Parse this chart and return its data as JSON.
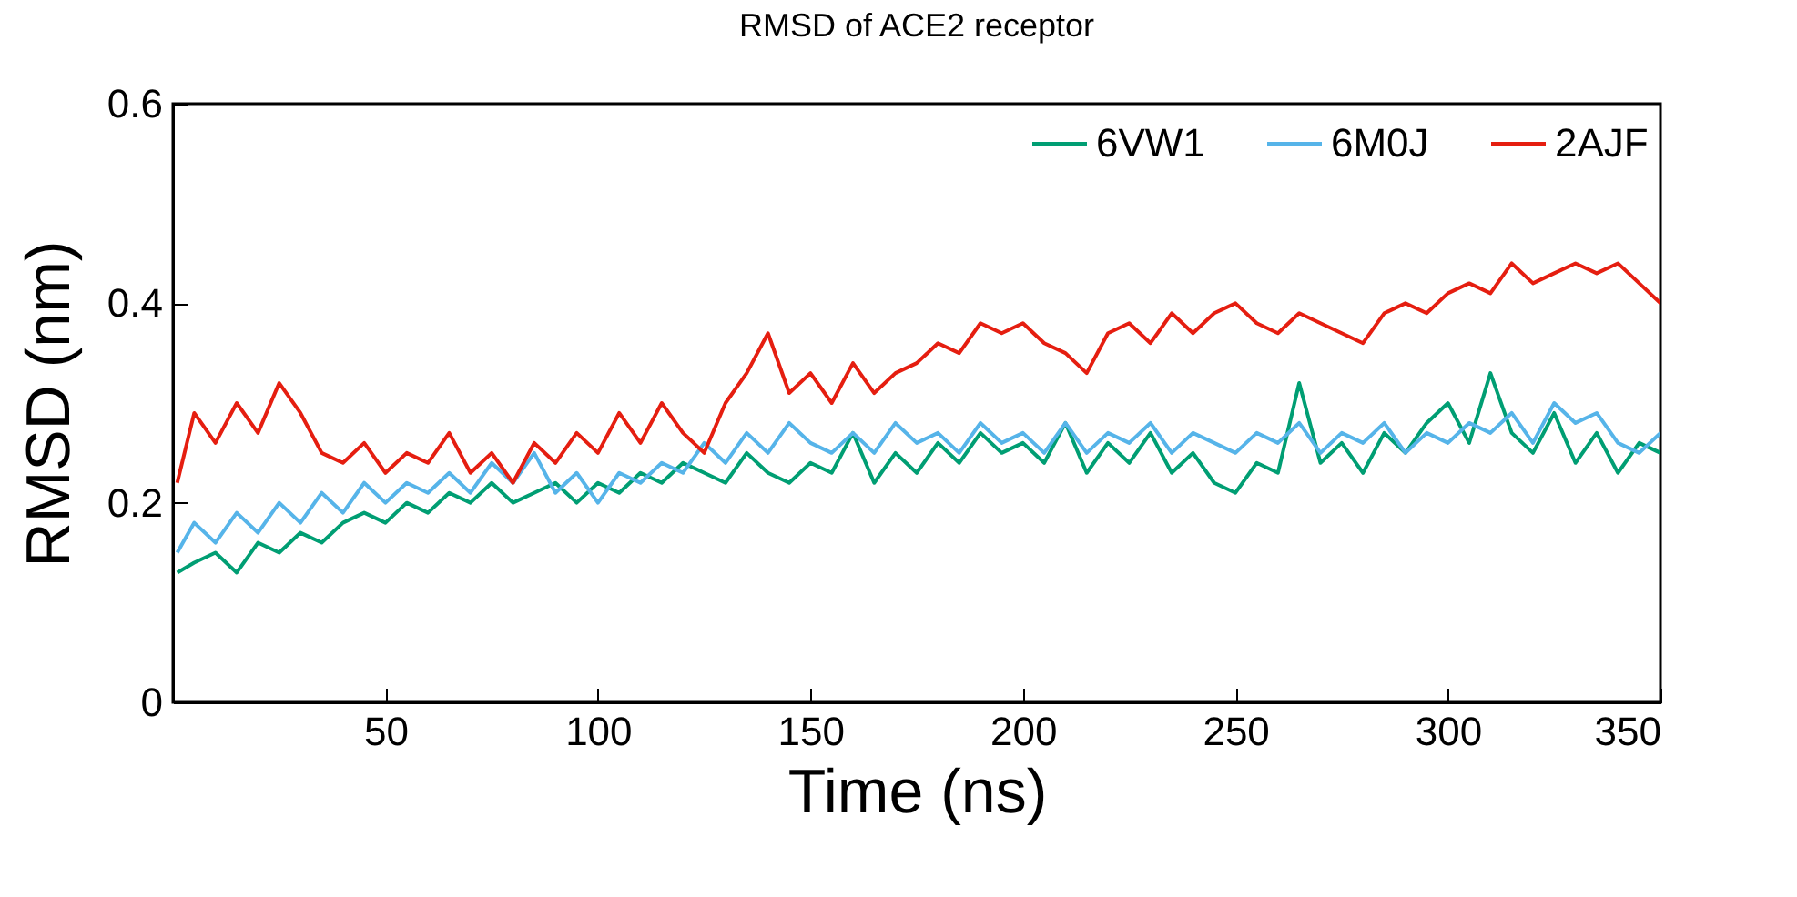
{
  "chart_data": {
    "type": "line",
    "title": "RMSD of ACE2 receptor",
    "xlabel": "Time (ns)",
    "ylabel": "RMSD (nm)",
    "x": [
      1,
      5,
      10,
      15,
      20,
      25,
      30,
      35,
      40,
      45,
      50,
      55,
      60,
      65,
      70,
      75,
      80,
      85,
      90,
      95,
      100,
      105,
      110,
      115,
      120,
      125,
      130,
      135,
      140,
      145,
      150,
      155,
      160,
      165,
      170,
      175,
      180,
      185,
      190,
      195,
      200,
      205,
      210,
      215,
      220,
      225,
      230,
      235,
      240,
      245,
      250,
      255,
      260,
      265,
      270,
      275,
      280,
      285,
      290,
      295,
      300,
      305,
      310,
      315,
      320,
      325,
      330,
      335,
      340,
      345,
      350
    ],
    "series": [
      {
        "name": "6VW1",
        "color": "#009e73",
        "values": [
          0.13,
          0.14,
          0.15,
          0.13,
          0.16,
          0.15,
          0.17,
          0.16,
          0.18,
          0.19,
          0.18,
          0.2,
          0.19,
          0.21,
          0.2,
          0.22,
          0.2,
          0.21,
          0.22,
          0.2,
          0.22,
          0.21,
          0.23,
          0.22,
          0.24,
          0.23,
          0.22,
          0.25,
          0.23,
          0.22,
          0.24,
          0.23,
          0.27,
          0.22,
          0.25,
          0.23,
          0.26,
          0.24,
          0.27,
          0.25,
          0.26,
          0.24,
          0.28,
          0.23,
          0.26,
          0.24,
          0.27,
          0.23,
          0.25,
          0.22,
          0.21,
          0.24,
          0.23,
          0.32,
          0.24,
          0.26,
          0.23,
          0.27,
          0.25,
          0.28,
          0.3,
          0.26,
          0.33,
          0.27,
          0.25,
          0.29,
          0.24,
          0.27,
          0.23,
          0.26,
          0.25
        ]
      },
      {
        "name": "6M0J",
        "color": "#56b4e9",
        "values": [
          0.15,
          0.18,
          0.16,
          0.19,
          0.17,
          0.2,
          0.18,
          0.21,
          0.19,
          0.22,
          0.2,
          0.22,
          0.21,
          0.23,
          0.21,
          0.24,
          0.22,
          0.25,
          0.21,
          0.23,
          0.2,
          0.23,
          0.22,
          0.24,
          0.23,
          0.26,
          0.24,
          0.27,
          0.25,
          0.28,
          0.26,
          0.25,
          0.27,
          0.25,
          0.28,
          0.26,
          0.27,
          0.25,
          0.28,
          0.26,
          0.27,
          0.25,
          0.28,
          0.25,
          0.27,
          0.26,
          0.28,
          0.25,
          0.27,
          0.26,
          0.25,
          0.27,
          0.26,
          0.28,
          0.25,
          0.27,
          0.26,
          0.28,
          0.25,
          0.27,
          0.26,
          0.28,
          0.27,
          0.29,
          0.26,
          0.3,
          0.28,
          0.29,
          0.26,
          0.25,
          0.27
        ]
      },
      {
        "name": "2AJF",
        "color": "#e51e10",
        "values": [
          0.22,
          0.29,
          0.26,
          0.3,
          0.27,
          0.32,
          0.29,
          0.25,
          0.24,
          0.26,
          0.23,
          0.25,
          0.24,
          0.27,
          0.23,
          0.25,
          0.22,
          0.26,
          0.24,
          0.27,
          0.25,
          0.29,
          0.26,
          0.3,
          0.27,
          0.25,
          0.3,
          0.33,
          0.37,
          0.31,
          0.33,
          0.3,
          0.34,
          0.31,
          0.33,
          0.34,
          0.36,
          0.35,
          0.38,
          0.37,
          0.38,
          0.36,
          0.35,
          0.33,
          0.37,
          0.38,
          0.36,
          0.39,
          0.37,
          0.39,
          0.4,
          0.38,
          0.37,
          0.39,
          0.38,
          0.37,
          0.36,
          0.39,
          0.4,
          0.39,
          0.41,
          0.42,
          0.41,
          0.44,
          0.42,
          0.43,
          0.44,
          0.43,
          0.44,
          0.42,
          0.4
        ]
      }
    ],
    "xlim": [
      0,
      350
    ],
    "xticks": [
      50,
      100,
      150,
      200,
      250,
      300,
      350
    ],
    "ylim": [
      0,
      0.6
    ],
    "yticks": [
      0,
      0.2,
      0.4,
      0.6
    ],
    "grid": false,
    "legend": "top right",
    "line_style": "solid"
  }
}
